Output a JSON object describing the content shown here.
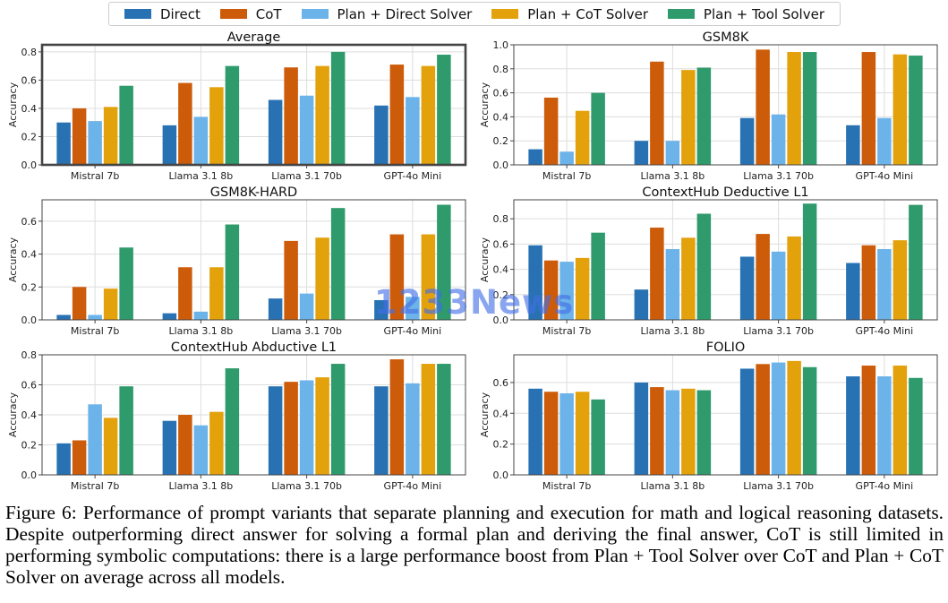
{
  "legend": [
    {
      "name": "Direct",
      "color": "#2872b4"
    },
    {
      "name": "CoT",
      "color": "#cd5c0a"
    },
    {
      "name": "Plan + Direct Solver",
      "color": "#6cb3e9"
    },
    {
      "name": "Plan + CoT Solver",
      "color": "#e3a10b"
    },
    {
      "name": "Plan + Tool Solver",
      "color": "#2f9a6c"
    }
  ],
  "chart_data": [
    {
      "type": "bar",
      "title": "Average",
      "ylabel": "Accuracy",
      "ylim": [
        0,
        0.85
      ],
      "yticks": [
        "0.0",
        "0.2",
        "0.4",
        "0.6",
        "0.8"
      ],
      "grid": true,
      "highlighted": true,
      "categories": [
        "Mistral 7b",
        "Llama 3.1 8b",
        "Llama 3.1 70b",
        "GPT-4o Mini"
      ],
      "series": [
        {
          "name": "Direct",
          "values": [
            0.3,
            0.28,
            0.46,
            0.42
          ]
        },
        {
          "name": "CoT",
          "values": [
            0.4,
            0.58,
            0.69,
            0.71
          ]
        },
        {
          "name": "Plan + Direct Solver",
          "values": [
            0.31,
            0.34,
            0.49,
            0.48
          ]
        },
        {
          "name": "Plan + CoT Solver",
          "values": [
            0.41,
            0.55,
            0.7,
            0.7
          ]
        },
        {
          "name": "Plan + Tool Solver",
          "values": [
            0.56,
            0.7,
            0.8,
            0.78
          ]
        }
      ]
    },
    {
      "type": "bar",
      "title": "GSM8K",
      "ylabel": "Accuracy",
      "ylim": [
        0,
        1.0
      ],
      "yticks": [
        "0.0",
        "0.2",
        "0.4",
        "0.6",
        "0.8",
        "1.0"
      ],
      "grid": true,
      "categories": [
        "Mistral 7b",
        "Llama 3.1 8b",
        "Llama 3.1 70b",
        "GPT-4o Mini"
      ],
      "series": [
        {
          "name": "Direct",
          "values": [
            0.13,
            0.2,
            0.39,
            0.33
          ]
        },
        {
          "name": "CoT",
          "values": [
            0.56,
            0.86,
            0.96,
            0.94
          ]
        },
        {
          "name": "Plan + Direct Solver",
          "values": [
            0.11,
            0.2,
            0.42,
            0.39
          ]
        },
        {
          "name": "Plan + CoT Solver",
          "values": [
            0.45,
            0.79,
            0.94,
            0.92
          ]
        },
        {
          "name": "Plan + Tool Solver",
          "values": [
            0.6,
            0.81,
            0.94,
            0.91
          ]
        }
      ]
    },
    {
      "type": "bar",
      "title": "GSM8K-HARD",
      "ylabel": "Accuracy",
      "ylim": [
        0,
        0.73
      ],
      "yticks": [
        "0.0",
        "0.2",
        "0.4",
        "0.6"
      ],
      "grid": true,
      "categories": [
        "Mistral 7b",
        "Llama 3.1 8b",
        "Llama 3.1 70b",
        "GPT-4o Mini"
      ],
      "series": [
        {
          "name": "Direct",
          "values": [
            0.03,
            0.04,
            0.13,
            0.12
          ]
        },
        {
          "name": "CoT",
          "values": [
            0.2,
            0.32,
            0.48,
            0.52
          ]
        },
        {
          "name": "Plan + Direct Solver",
          "values": [
            0.03,
            0.05,
            0.16,
            0.14
          ]
        },
        {
          "name": "Plan + CoT Solver",
          "values": [
            0.19,
            0.32,
            0.5,
            0.52
          ]
        },
        {
          "name": "Plan + Tool Solver",
          "values": [
            0.44,
            0.58,
            0.68,
            0.7
          ]
        }
      ]
    },
    {
      "type": "bar",
      "title": "ContextHub Deductive L1",
      "ylabel": "Accuracy",
      "ylim": [
        0,
        0.95
      ],
      "yticks": [
        "0.0",
        "0.2",
        "0.4",
        "0.6",
        "0.8"
      ],
      "grid": true,
      "categories": [
        "Mistral 7b",
        "Llama 3.1 8b",
        "Llama 3.1 70b",
        "GPT-4o Mini"
      ],
      "series": [
        {
          "name": "Direct",
          "values": [
            0.59,
            0.24,
            0.5,
            0.45
          ]
        },
        {
          "name": "CoT",
          "values": [
            0.47,
            0.73,
            0.68,
            0.59
          ]
        },
        {
          "name": "Plan + Direct Solver",
          "values": [
            0.46,
            0.56,
            0.54,
            0.56
          ]
        },
        {
          "name": "Plan + CoT Solver",
          "values": [
            0.49,
            0.65,
            0.66,
            0.63
          ]
        },
        {
          "name": "Plan + Tool Solver",
          "values": [
            0.69,
            0.84,
            0.92,
            0.91
          ]
        }
      ]
    },
    {
      "type": "bar",
      "title": "ContextHub Abductive L1",
      "ylabel": "Accuracy",
      "ylim": [
        0,
        0.8
      ],
      "yticks": [
        "0.0",
        "0.2",
        "0.4",
        "0.6",
        "0.8"
      ],
      "grid": true,
      "categories": [
        "Mistral 7b",
        "Llama 3.1 8b",
        "Llama 3.1 70b",
        "GPT-4o Mini"
      ],
      "series": [
        {
          "name": "Direct",
          "values": [
            0.21,
            0.36,
            0.59,
            0.59
          ]
        },
        {
          "name": "CoT",
          "values": [
            0.23,
            0.4,
            0.62,
            0.77
          ]
        },
        {
          "name": "Plan + Direct Solver",
          "values": [
            0.47,
            0.33,
            0.63,
            0.61
          ]
        },
        {
          "name": "Plan + CoT Solver",
          "values": [
            0.38,
            0.42,
            0.65,
            0.74
          ]
        },
        {
          "name": "Plan + Tool Solver",
          "values": [
            0.59,
            0.71,
            0.74,
            0.74
          ]
        }
      ]
    },
    {
      "type": "bar",
      "title": "FOLIO",
      "ylabel": "Accuracy",
      "ylim": [
        0,
        0.78
      ],
      "yticks": [
        "0.0",
        "0.2",
        "0.4",
        "0.6"
      ],
      "grid": true,
      "categories": [
        "Mistral 7b",
        "Llama 3.1 8b",
        "Llama 3.1 70b",
        "GPT-4o Mini"
      ],
      "series": [
        {
          "name": "Direct",
          "values": [
            0.56,
            0.6,
            0.69,
            0.64
          ]
        },
        {
          "name": "CoT",
          "values": [
            0.54,
            0.57,
            0.72,
            0.71
          ]
        },
        {
          "name": "Plan + Direct Solver",
          "values": [
            0.53,
            0.55,
            0.73,
            0.64
          ]
        },
        {
          "name": "Plan + CoT Solver",
          "values": [
            0.54,
            0.56,
            0.74,
            0.71
          ]
        },
        {
          "name": "Plan + Tool Solver",
          "values": [
            0.49,
            0.55,
            0.7,
            0.63
          ]
        }
      ]
    }
  ],
  "caption": "Figure 6: Performance of prompt variants that separate planning and execution for math and logical reasoning datasets. Despite outperforming direct answer for solving a formal plan and deriving the final answer, CoT is still limited in performing symbolic computations: there is a large performance boost from Plan + Tool Solver over CoT and Plan + CoT Solver on average across all models.",
  "watermark": "1233News"
}
